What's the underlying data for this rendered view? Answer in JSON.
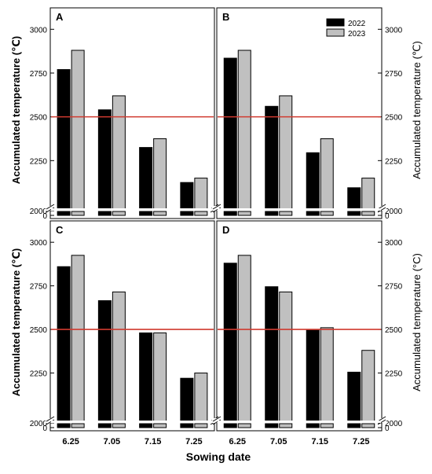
{
  "figure": {
    "xlabel": "Sowing date",
    "ylabel_left": "Accumulated temperature (℃)",
    "ylabel_right": "Accumulated temperature (℃)",
    "ylabel_right_bottom": "Accumulated temperature (°C)"
  },
  "colors": {
    "series_2022": "#000000",
    "series_2023": "#c0c0c0",
    "threshold_line": "#d03a2f"
  },
  "chart_data": [
    {
      "panel": "A",
      "type": "bar",
      "categories": [
        "6.25",
        "7.05",
        "7.15",
        "7.25"
      ],
      "series": [
        {
          "name": "2022",
          "values": [
            2770,
            2540,
            2325,
            2125
          ]
        },
        {
          "name": "2023",
          "values": [
            2880,
            2620,
            2375,
            2150
          ]
        }
      ],
      "threshold": 2500,
      "ylim": [
        0,
        3100
      ],
      "axis_break": [
        0,
        2000
      ],
      "yticks": [
        0,
        2000,
        2250,
        2500,
        2750,
        3000
      ],
      "show_legend": false
    },
    {
      "panel": "B",
      "type": "bar",
      "categories": [
        "6.25",
        "7.05",
        "7.15",
        "7.25"
      ],
      "series": [
        {
          "name": "2022",
          "values": [
            2835,
            2560,
            2295,
            2095
          ]
        },
        {
          "name": "2023",
          "values": [
            2880,
            2620,
            2375,
            2150
          ]
        }
      ],
      "threshold": 2500,
      "ylim": [
        0,
        3100
      ],
      "axis_break": [
        0,
        2000
      ],
      "yticks": [
        0,
        2000,
        2250,
        2500,
        2750,
        3000
      ],
      "show_legend": true,
      "legend_position": "top-right"
    },
    {
      "panel": "C",
      "type": "bar",
      "categories": [
        "6.25",
        "7.05",
        "7.15",
        "7.25"
      ],
      "series": [
        {
          "name": "2022",
          "values": [
            2860,
            2665,
            2480,
            2220
          ]
        },
        {
          "name": "2023",
          "values": [
            2925,
            2715,
            2480,
            2250
          ]
        }
      ],
      "threshold": 2500,
      "ylim": [
        0,
        3100
      ],
      "axis_break": [
        0,
        2000
      ],
      "yticks": [
        0,
        2000,
        2250,
        2500,
        2750,
        3000
      ],
      "show_legend": false
    },
    {
      "panel": "D",
      "type": "bar",
      "categories": [
        "6.25",
        "7.05",
        "7.15",
        "7.25"
      ],
      "series": [
        {
          "name": "2022",
          "values": [
            2880,
            2745,
            2500,
            2255
          ]
        },
        {
          "name": "2023",
          "values": [
            2925,
            2715,
            2510,
            2380
          ]
        }
      ],
      "threshold": 2500,
      "ylim": [
        0,
        3100
      ],
      "axis_break": [
        0,
        2000
      ],
      "yticks": [
        0,
        2000,
        2250,
        2500,
        2750,
        3000
      ],
      "show_legend": false
    }
  ]
}
